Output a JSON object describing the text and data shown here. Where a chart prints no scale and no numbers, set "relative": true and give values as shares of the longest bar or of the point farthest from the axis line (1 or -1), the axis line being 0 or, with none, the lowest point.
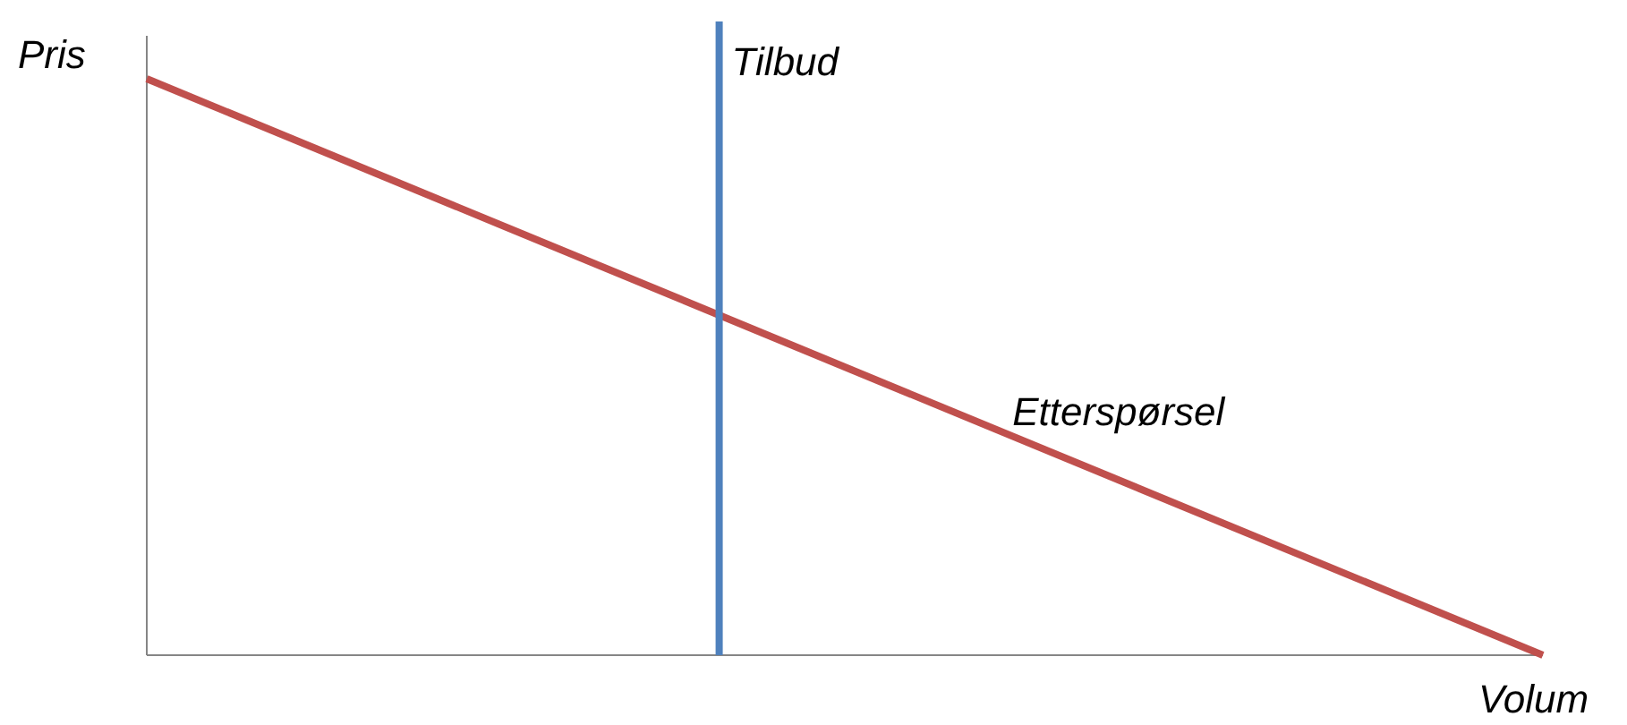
{
  "chart_data": {
    "type": "line",
    "relative": true,
    "xlabel": "Volum",
    "ylabel": "Pris",
    "marker": "none",
    "line_style": "solid",
    "categories": [
      null,
      null
    ],
    "series": [
      {
        "name": "Etterspørsel",
        "color": "#c0504d",
        "values": [
          1,
          0
        ]
      }
    ],
    "annotations": [
      "Tilbud"
    ]
  }
}
